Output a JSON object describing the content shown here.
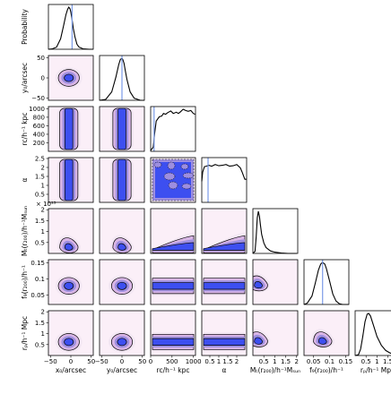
{
  "chart_data": {
    "type": "corner",
    "parameters": [
      {
        "name": "x0",
        "label": "x₀/arcsec",
        "range": [
          -55,
          55
        ],
        "ticks": [
          -50,
          0,
          50
        ],
        "tick_labels": [
          "−50",
          "0",
          "50"
        ]
      },
      {
        "name": "y0",
        "label": "y₀/arcsec",
        "range": [
          -55,
          55
        ],
        "ticks": [
          -50,
          0,
          50
        ],
        "tick_labels": [
          "−50",
          "0",
          "50"
        ]
      },
      {
        "name": "rc",
        "label": "rᴄ/h⁻¹kpc",
        "range": [
          0,
          1050
        ],
        "ticks": [
          0,
          500,
          1000
        ],
        "ytick_values": [
          200,
          400,
          600,
          800,
          1000
        ],
        "tick_labels": [
          "0",
          "500",
          "1000"
        ]
      },
      {
        "name": "alpha",
        "label": "α",
        "range": [
          0.05,
          2.55
        ],
        "ticks": [
          0.5,
          1,
          1.5,
          2
        ],
        "ytick_values": [
          0.5,
          1,
          1.5,
          2,
          2.5
        ],
        "tick_labels": [
          "0.5",
          "1",
          "1.5",
          "2"
        ],
        "ytick_labels": [
          "0.5",
          "1",
          "1.5",
          "2",
          "2.5"
        ]
      },
      {
        "name": "Mt",
        "label": "Mₜ(r₂₀₀)/h⁻¹Mₛᵤₙ",
        "range": [
          0,
          2.05
        ],
        "ticks": [
          0.5,
          1,
          1.5,
          2
        ],
        "ytick_values": [
          0.5,
          1,
          1.5,
          2
        ],
        "tick_labels": [
          "0.5",
          "1",
          "1.5",
          "2"
        ],
        "multiplier": "× 10¹⁵"
      },
      {
        "name": "fg",
        "label": "f_g(r₂₀₀)/h⁻¹",
        "range": [
          0.02,
          0.16
        ],
        "ticks": [
          0.05,
          0.1,
          0.15
        ],
        "tick_labels": [
          "0.05",
          "0.1",
          "0.15"
        ]
      },
      {
        "name": "rp",
        "label": "rₚ/h⁻¹Mpc",
        "range": [
          0,
          2.05
        ],
        "ticks": [
          0.5,
          1,
          1.5,
          2
        ],
        "tick_labels": [
          "0.5",
          "1",
          "1.5",
          "2"
        ]
      }
    ],
    "ylabels": [
      "Probability",
      "y₀/arcsec",
      "rᴄ/h⁻¹ kpc",
      "α",
      "Mₜ(r₂₀₀)/h⁻¹Mₛᵤₙ",
      "f₉(r₂₀₀)/h⁻¹",
      "rₚ/h⁻¹ Mpc"
    ],
    "xlabels": [
      "x₀/arcsec",
      "y₀/arcsec",
      "rᴄ/h⁻¹ kpc",
      "α",
      "Mₜ(r₂₀₀)/h⁻¹Mₛᵤₙ",
      "f₉(r₂₀₀)/h⁻¹",
      "rₚ/h⁻¹ Mpc"
    ],
    "multiplier_label": "× 10¹⁵",
    "true_values": [
      3,
      0,
      80,
      0.4,
      null,
      0.078,
      null
    ],
    "marginals": {
      "x0": {
        "x": [
          -55,
          -45,
          -35,
          -25,
          -18,
          -12,
          -8,
          -5,
          -2,
          0,
          3,
          6,
          10,
          15,
          20,
          30,
          45,
          55
        ],
        "y": [
          0,
          0.01,
          0.05,
          0.25,
          0.55,
          0.82,
          0.95,
          1.0,
          0.96,
          0.88,
          0.7,
          0.5,
          0.3,
          0.12,
          0.05,
          0.01,
          0,
          0
        ]
      },
      "y0": {
        "x": [
          -55,
          -40,
          -25,
          -15,
          -8,
          -4,
          0,
          2,
          5,
          8,
          12,
          20,
          30,
          45,
          55
        ],
        "y": [
          0,
          0.02,
          0.2,
          0.55,
          0.85,
          0.97,
          1.0,
          0.97,
          0.88,
          0.72,
          0.5,
          0.2,
          0.05,
          0,
          0
        ]
      },
      "rc": {
        "x": [
          0,
          60,
          90,
          130,
          200,
          260,
          300,
          350,
          400,
          470,
          530,
          600,
          650,
          700,
          760,
          820,
          880,
          940,
          1000,
          1040
        ],
        "y": [
          0.02,
          0.1,
          0.4,
          0.72,
          0.82,
          0.84,
          0.9,
          0.88,
          0.92,
          0.96,
          0.9,
          0.93,
          0.9,
          0.94,
          1.0,
          0.97,
          0.95,
          0.97,
          0.9,
          0.88
        ]
      },
      "alpha": {
        "x": [
          0.05,
          0.1,
          0.2,
          0.3,
          0.45,
          0.6,
          0.8,
          1.0,
          1.2,
          1.4,
          1.6,
          1.8,
          2.0,
          2.2,
          2.3,
          2.45,
          2.55
        ],
        "y": [
          0.5,
          0.72,
          0.85,
          0.86,
          0.88,
          0.86,
          0.9,
          0.87,
          0.88,
          0.9,
          0.86,
          0.87,
          0.9,
          0.82,
          0.72,
          0.55,
          0.55
        ]
      },
      "Mt": {
        "x": [
          0,
          0.1,
          0.15,
          0.2,
          0.25,
          0.3,
          0.35,
          0.4,
          0.5,
          0.6,
          0.8,
          1.0,
          1.3,
          1.6,
          2.0
        ],
        "y": [
          0,
          0.05,
          0.4,
          0.85,
          1.0,
          0.88,
          0.66,
          0.45,
          0.25,
          0.14,
          0.06,
          0.03,
          0.01,
          0,
          0
        ]
      },
      "fg": {
        "x": [
          0.02,
          0.03,
          0.045,
          0.055,
          0.065,
          0.072,
          0.078,
          0.085,
          0.09,
          0.1,
          0.11,
          0.12,
          0.13,
          0.14,
          0.16
        ],
        "y": [
          0,
          0.03,
          0.2,
          0.5,
          0.82,
          0.96,
          1.0,
          0.96,
          0.85,
          0.55,
          0.25,
          0.08,
          0.02,
          0,
          0
        ]
      },
      "rp": {
        "x": [
          0,
          0.15,
          0.25,
          0.35,
          0.45,
          0.55,
          0.62,
          0.7,
          0.85,
          1.0,
          1.2,
          1.4,
          1.6,
          1.8,
          2.0
        ],
        "y": [
          0,
          0.02,
          0.15,
          0.45,
          0.8,
          0.98,
          1.0,
          0.94,
          0.7,
          0.45,
          0.24,
          0.12,
          0.06,
          0.02,
          0.01
        ]
      }
    },
    "joint_shapes": {
      "centered": [
        "x0-y0",
        "x0-fg",
        "y0-fg",
        "x0-rp",
        "y0-rp"
      ],
      "vertical_band": [
        "x0-rc",
        "y0-rc",
        "x0-alpha",
        "y0-alpha"
      ],
      "horizontal_band": [
        "rc-fg",
        "alpha-fg",
        "rc-rp",
        "alpha-rp",
        "rc-Mt",
        "alpha-Mt"
      ],
      "uniform": [
        "rc-alpha"
      ],
      "skewed": [
        "x0-Mt",
        "y0-Mt",
        "Mt-fg",
        "Mt-rp",
        "fg-rp"
      ]
    },
    "contour_colors": [
      "#f4e8f4",
      "#d9b6e6",
      "#9d8ee0",
      "#3d4ff0"
    ],
    "panel_background": "#fbeff8",
    "truth_color": "#7b9be8"
  }
}
